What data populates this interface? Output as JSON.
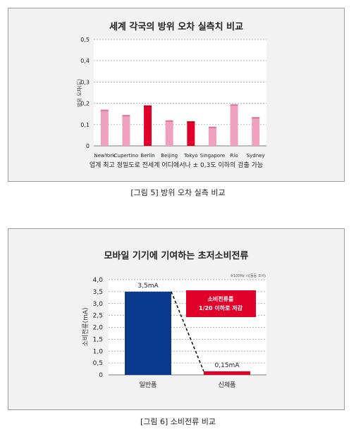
{
  "charts": [
    {
      "chart_data": {
        "type": "bar",
        "title": "세계 각국의 방위 오차 실측치 비교",
        "ylabel": "방위 오차(도)",
        "categories": [
          "NewYork",
          "Cupertino",
          "Berlin",
          "Beijing",
          "Tokyo",
          "Singapore",
          "Rio",
          "Sydney"
        ],
        "values": [
          0.17,
          0.145,
          0.19,
          0.12,
          0.115,
          0.09,
          0.195,
          0.135
        ],
        "bar_colors": [
          "#f0a0bf",
          "#f0a0bf",
          "#e0002a",
          "#f0a0bf",
          "#e0002a",
          "#f0a0bf",
          "#f0a0bf",
          "#f0a0bf"
        ],
        "ylim": [
          0,
          0.5
        ],
        "yticks": [
          "0",
          "0,1",
          "0,2",
          "0,3",
          "0,4",
          "0,5"
        ],
        "grid": true,
        "note": "업계 최고 정밀도로 전세계 어디에서나 ± 0,3도 이하의 검출 가능"
      },
      "caption": "[그림 5] 방위 오차 실측 비교"
    },
    {
      "chart_data": {
        "type": "bar",
        "title": "모바일 기기에 기여하는 초저소비전류",
        "ylabel": "소비전류(mA)",
        "subnote": "※100Hz 시(동등 조사)",
        "categories": [
          "일반품",
          "신제품"
        ],
        "values": [
          3.5,
          0.15
        ],
        "data_labels": [
          "3,5mA",
          "0,15mA"
        ],
        "bar_colors": [
          "#0a3a8c",
          "#e0002a"
        ],
        "ylim": [
          0,
          4.0
        ],
        "yticks": [
          "0",
          "0,5",
          "1,0",
          "1,5",
          "2,0",
          "2,5",
          "3,0",
          "3,5",
          "4,0"
        ],
        "grid": true,
        "callout": [
          "소비전류를",
          "1/20 이하로 저감"
        ]
      },
      "caption": "[그림 6] 소비전류 비교"
    }
  ],
  "colors": {
    "accent": "#e0002a",
    "pink": "#f0a0bf",
    "navy": "#0a3a8c",
    "panel": "#f2f2f2"
  }
}
